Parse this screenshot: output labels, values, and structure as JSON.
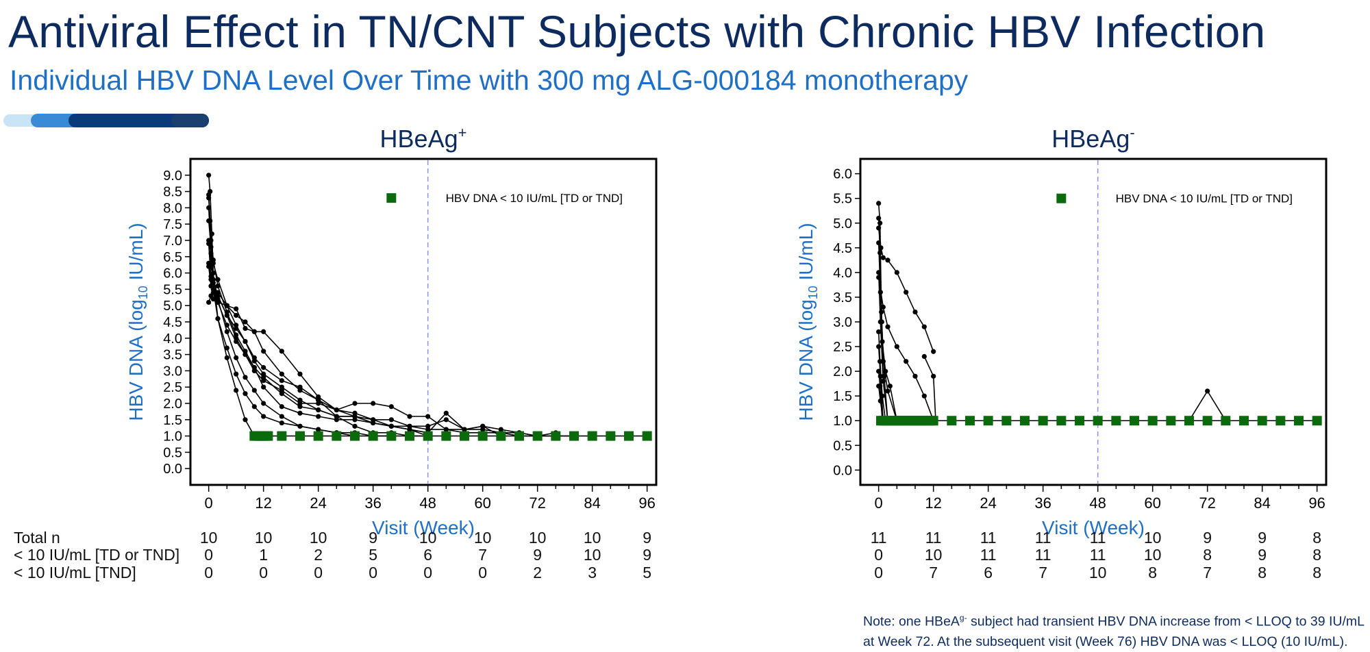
{
  "title": "Antiviral Effect in TN/CNT Subjects with Chronic HBV Infection",
  "subtitle": "Individual HBV DNA Level Over Time with 300 mg ALG-000184 monotherapy",
  "colors": {
    "title": "#0d2b5e",
    "subtitle": "#1f6fc5",
    "axis_label": "#1f6fc5",
    "marker": "#0b6a0b",
    "line": "#000000",
    "ref_line": "#8a8ff0",
    "accent": [
      "#c9e3f7",
      "#3a8bd6",
      "#0a3a7a",
      "#1b3f6e"
    ]
  },
  "chart_data": [
    {
      "type": "line",
      "title": "HBeAg",
      "title_sup": "+",
      "xlabel": "Visit (Week)",
      "ylabel_prefix": "HBV  DNA  (log",
      "ylabel_sub": "10",
      "ylabel_suffix": "  IU/mL)",
      "xlim": [
        -4,
        98
      ],
      "ylim": [
        -0.5,
        9.5
      ],
      "xticks": [
        0,
        12,
        24,
        36,
        48,
        60,
        72,
        84,
        96
      ],
      "yticks": [
        0.0,
        0.5,
        1.0,
        1.5,
        2.0,
        2.5,
        3.0,
        3.5,
        4.0,
        4.5,
        5.0,
        5.5,
        6.0,
        6.5,
        7.0,
        7.5,
        8.0,
        8.5,
        9.0
      ],
      "ref_line_x": 48,
      "legend": {
        "label": "HBV DNA < 10 IU/mL [TD or TND]",
        "position": "top-right"
      },
      "series": [
        {
          "name": "S1",
          "x": [
            0,
            0.3,
            0.7,
            1,
            2,
            4,
            6,
            8,
            10
          ],
          "y": [
            9.0,
            8.5,
            7.2,
            6.0,
            4.6,
            3.4,
            2.4,
            1.5,
            1.0
          ]
        },
        {
          "name": "S2",
          "x": [
            0,
            0.3,
            1,
            2,
            4,
            6,
            8,
            10,
            12,
            16,
            20,
            24,
            28,
            32,
            36,
            40,
            44,
            48,
            52,
            56,
            60,
            64
          ],
          "y": [
            8.4,
            7.6,
            6.4,
            5.6,
            4.8,
            4.1,
            3.6,
            3.1,
            2.8,
            2.3,
            1.9,
            1.8,
            1.6,
            1.6,
            1.4,
            1.3,
            1.2,
            1.1,
            1.7,
            1.2,
            1.3,
            1.0
          ]
        },
        {
          "name": "S3",
          "x": [
            0,
            0.5,
            1,
            2,
            4,
            6,
            8,
            10,
            12,
            16,
            20,
            24,
            28,
            32
          ],
          "y": [
            8.3,
            7.0,
            5.7,
            5.2,
            4.2,
            3.4,
            2.8,
            2.4,
            2.0,
            1.6,
            1.3,
            1.2,
            1.1,
            1.0
          ]
        },
        {
          "name": "S4",
          "x": [
            0,
            0.5,
            1,
            2,
            4,
            6,
            8,
            10,
            12,
            16,
            20,
            24,
            28,
            32,
            36,
            40
          ],
          "y": [
            8.0,
            6.6,
            5.5,
            4.6,
            3.7,
            2.9,
            2.3,
            1.9,
            1.6,
            1.4,
            1.3,
            1.2,
            1.1,
            1.1,
            1.0,
            1.0
          ]
        },
        {
          "name": "S5",
          "x": [
            0,
            0.5,
            1,
            2,
            4,
            6,
            8,
            10,
            12,
            16,
            20,
            24,
            28,
            32,
            36,
            40,
            44,
            48
          ],
          "y": [
            7.6,
            6.8,
            6.3,
            5.8,
            5.0,
            4.4,
            3.9,
            3.3,
            2.9,
            2.5,
            2.1,
            1.8,
            1.6,
            1.6,
            1.5,
            1.3,
            1.2,
            1.0
          ]
        },
        {
          "name": "S6",
          "x": [
            0,
            0.5,
            1,
            2,
            4,
            6,
            8,
            10,
            12,
            16,
            20,
            24,
            28,
            32,
            36,
            40,
            44,
            48
          ],
          "y": [
            7.0,
            6.2,
            5.8,
            5.3,
            4.7,
            4.3,
            3.9,
            3.4,
            3.1,
            2.7,
            2.5,
            2.1,
            1.8,
            1.6,
            1.4,
            1.3,
            1.2,
            1.1
          ]
        },
        {
          "name": "S7",
          "x": [
            0,
            0.5,
            1,
            2,
            4,
            6,
            8,
            10,
            12,
            16,
            20,
            24,
            28,
            32,
            36,
            40,
            44,
            48,
            52,
            56,
            60,
            64,
            68,
            72,
            76
          ],
          "y": [
            6.3,
            5.9,
            5.4,
            5.1,
            4.4,
            3.9,
            3.5,
            3.0,
            2.7,
            2.4,
            2.0,
            2.0,
            1.8,
            1.7,
            1.5,
            1.5,
            1.3,
            1.3,
            1.5,
            1.2,
            1.2,
            1.1,
            1.1,
            1.0,
            1.1
          ]
        },
        {
          "name": "S8",
          "x": [
            0,
            0.5,
            1,
            2,
            4,
            6,
            8,
            10,
            12,
            16,
            20,
            24,
            28,
            32,
            36,
            40,
            44,
            48
          ],
          "y": [
            6.2,
            5.6,
            5.5,
            5.4,
            5.0,
            4.9,
            4.3,
            4.2,
            3.6,
            2.9,
            2.4,
            2.1,
            1.6,
            1.3,
            1.1,
            1.1,
            1.0,
            1.0
          ]
        },
        {
          "name": "S9",
          "x": [
            0,
            0.5,
            1,
            2,
            4,
            6,
            8,
            10,
            12,
            16,
            20,
            24,
            28,
            32,
            36,
            40,
            44,
            48,
            52,
            56,
            60,
            64,
            68,
            72
          ],
          "y": [
            6.9,
            5.8,
            5.2,
            5.1,
            5.0,
            4.7,
            4.5,
            4.2,
            4.2,
            3.6,
            2.9,
            2.2,
            1.8,
            2.0,
            2.0,
            1.9,
            1.6,
            1.6,
            1.2,
            1.2,
            1.3,
            1.2,
            1.1,
            1.0
          ]
        },
        {
          "name": "S10",
          "x": [
            0,
            0.5,
            1,
            2,
            4,
            6,
            8,
            10,
            12,
            16,
            20,
            24,
            28,
            32,
            36,
            40,
            44,
            48,
            52,
            56,
            60,
            64,
            68,
            72,
            76,
            80
          ],
          "y": [
            5.1,
            5.3,
            5.6,
            5.3,
            4.7,
            4.0,
            3.5,
            3.1,
            2.5,
            1.9,
            1.7,
            1.6,
            1.5,
            1.5,
            1.4,
            1.3,
            1.3,
            1.2,
            1.2,
            1.1,
            1.1,
            1.1,
            1.0,
            1.0,
            1.0,
            1.0
          ]
        }
      ],
      "markers_x": [
        10,
        10.5,
        11,
        11.5,
        12,
        12.5,
        13,
        16,
        20,
        24,
        28,
        32,
        36,
        40,
        44,
        48,
        52,
        56,
        60,
        64,
        68,
        72,
        76,
        80,
        84,
        88,
        92,
        96
      ],
      "markers_y": 1.0,
      "table": {
        "row_labels": [
          "Total n",
          "< 10 IU/mL [TD or TND]",
          "< 10 IU/mL [TND]"
        ],
        "columns_x": [
          0,
          12,
          24,
          36,
          48,
          60,
          72,
          84,
          96
        ],
        "rows": [
          [
            "10",
            "10",
            "10",
            "9",
            "10",
            "10",
            "10",
            "10",
            "9"
          ],
          [
            "0",
            "1",
            "2",
            "5",
            "6",
            "7",
            "9",
            "10",
            "9"
          ],
          [
            "0",
            "0",
            "0",
            "0",
            "0",
            "0",
            "2",
            "3",
            "5"
          ]
        ]
      }
    },
    {
      "type": "line",
      "title": "HBeAg",
      "title_sup": "-",
      "xlabel": "Visit (Week)",
      "ylabel_prefix": "HBV  DNA  (log",
      "ylabel_sub": "10",
      "ylabel_suffix": "  IU/mL)",
      "xlim": [
        -4,
        98
      ],
      "ylim": [
        -0.3,
        6.3
      ],
      "xticks": [
        0,
        12,
        24,
        36,
        48,
        60,
        72,
        84,
        96
      ],
      "yticks": [
        0.0,
        0.5,
        1.0,
        1.5,
        2.0,
        2.5,
        3.0,
        3.5,
        4.0,
        4.5,
        5.0,
        5.5,
        6.0
      ],
      "ref_line_x": 48,
      "legend": {
        "label": "HBV DNA < 10 IU/mL [TD or TND]",
        "position": "top-right"
      },
      "series": [
        {
          "name": "S1",
          "x": [
            0,
            0.3,
            0.6,
            1,
            2,
            4
          ],
          "y": [
            5.4,
            5.0,
            3.2,
            2.2,
            1.6,
            1.0
          ]
        },
        {
          "name": "S2",
          "x": [
            0,
            0.3,
            0.7,
            1.2,
            2
          ],
          "y": [
            5.1,
            4.4,
            3.0,
            1.9,
            1.0
          ]
        },
        {
          "name": "S3",
          "x": [
            0,
            0.4,
            0.8,
            1.5,
            2.5,
            4
          ],
          "y": [
            4.6,
            3.6,
            2.6,
            2.0,
            1.7,
            1.0
          ]
        },
        {
          "name": "S4",
          "x": [
            0,
            0.4,
            1,
            2
          ],
          "y": [
            4.0,
            3.0,
            1.8,
            1.0
          ]
        },
        {
          "name": "S5",
          "x": [
            0,
            0.3,
            0.8,
            1.5
          ],
          "y": [
            2.8,
            2.2,
            1.5,
            1.0
          ]
        },
        {
          "name": "S6",
          "x": [
            0,
            0.4,
            1
          ],
          "y": [
            2.5,
            1.9,
            1.0
          ]
        },
        {
          "name": "S7",
          "x": [
            0,
            0.3,
            0.8
          ],
          "y": [
            2.0,
            1.7,
            1.0
          ]
        },
        {
          "name": "S8",
          "x": [
            0,
            0.4,
            1
          ],
          "y": [
            1.7,
            1.4,
            1.0
          ]
        },
        {
          "name": "S9",
          "x": [
            0,
            0.5,
            1,
            2,
            4,
            6,
            8,
            10,
            12
          ],
          "y": [
            4.9,
            4.5,
            4.3,
            4.25,
            4.0,
            3.6,
            3.2,
            2.9,
            2.4
          ]
        },
        {
          "name": "S10",
          "x": [
            0,
            1,
            2,
            4,
            6,
            8,
            10,
            12
          ],
          "y": [
            3.9,
            3.3,
            2.9,
            2.5,
            2.2,
            1.9,
            1.5,
            1.0
          ]
        },
        {
          "name": "S11",
          "x": [
            68,
            72,
            76
          ],
          "y": [
            1.0,
            1.6,
            1.0
          ]
        },
        {
          "name": "S12",
          "x": [
            10,
            12,
            12.5
          ],
          "y": [
            2.3,
            1.9,
            1.0
          ]
        }
      ],
      "markers_x": [
        0.5,
        1,
        1.5,
        2,
        2.5,
        3,
        3.5,
        4,
        4.5,
        5,
        5.5,
        6,
        6.5,
        7,
        7.5,
        8,
        8.5,
        9,
        9.5,
        10,
        10.5,
        11,
        11.5,
        12,
        16,
        20,
        24,
        28,
        32,
        36,
        40,
        44,
        48,
        52,
        56,
        60,
        64,
        68,
        72,
        76,
        80,
        84,
        88,
        92,
        96
      ],
      "markers_y": 1.0,
      "table": {
        "row_labels": [],
        "columns_x": [
          0,
          12,
          24,
          36,
          48,
          60,
          72,
          84,
          96
        ],
        "rows": [
          [
            "11",
            "11",
            "11",
            "11",
            "11",
            "10",
            "9",
            "9",
            "8"
          ],
          [
            "0",
            "10",
            "11",
            "11",
            "11",
            "10",
            "8",
            "9",
            "8"
          ],
          [
            "0",
            "7",
            "6",
            "7",
            "10",
            "8",
            "7",
            "8",
            "8"
          ]
        ]
      }
    }
  ],
  "note": {
    "pre": "Note: one HBeA",
    "sup": "g-",
    "post": " subject had transient HBV DNA increase from < LLOQ to 39 IU/mL at Week 72. At the subsequent visit (Week 76) HBV DNA was < LLOQ (10 IU/mL)."
  }
}
